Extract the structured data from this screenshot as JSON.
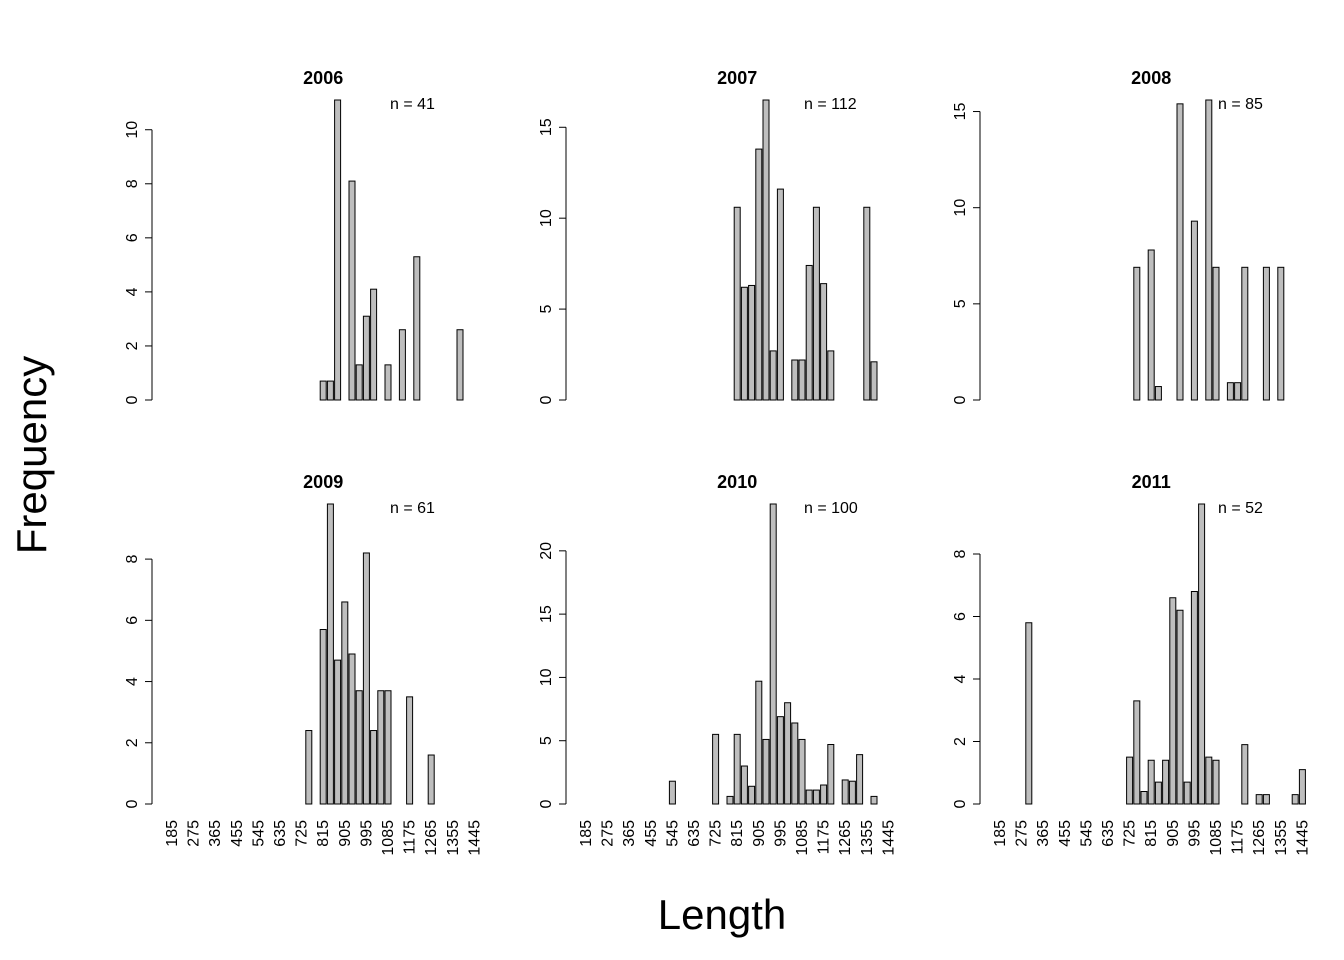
{
  "ylabel": "Frequency",
  "xlabel": "Length",
  "chart_data": [
    {
      "type": "bar",
      "title": "2006",
      "annotation": "n =  41",
      "color": "#bebebe",
      "values": [
        0,
        0,
        0,
        0,
        0,
        0,
        0,
        0,
        0,
        0,
        0,
        0,
        0,
        0,
        0,
        0,
        0,
        0,
        0,
        0,
        0,
        0.7,
        0.7,
        11.1,
        0,
        8.1,
        1.3,
        3.1,
        4.1,
        0,
        1.3,
        0,
        2.6,
        0,
        5.3,
        0,
        0,
        0,
        0,
        0,
        2.6,
        0,
        0
      ],
      "ylim": [
        0,
        11.1
      ],
      "yticks": [
        0,
        2,
        4,
        6,
        8,
        10
      ]
    },
    {
      "type": "bar",
      "title": "2007",
      "annotation": "n =  112",
      "color": "#bebebe",
      "values": [
        0,
        0,
        0,
        0,
        0,
        0,
        0,
        0,
        0,
        0,
        0,
        0,
        0,
        0,
        0,
        0,
        0,
        0,
        0,
        0,
        0,
        10.6,
        6.2,
        6.3,
        13.8,
        16.5,
        2.7,
        11.6,
        0,
        2.2,
        2.2,
        7.4,
        10.6,
        6.4,
        2.7,
        0,
        0,
        0,
        0,
        10.6,
        2.1,
        0,
        0
      ],
      "ylim": [
        0,
        16.5
      ],
      "yticks": [
        0,
        5,
        10,
        15
      ]
    },
    {
      "type": "bar",
      "title": "2008",
      "annotation": "n =  85",
      "color": "#bebebe",
      "values": [
        0,
        0,
        0,
        0,
        0,
        0,
        0,
        0,
        0,
        0,
        0,
        0,
        0,
        0,
        0,
        0,
        0,
        0,
        0,
        6.9,
        0,
        7.8,
        0.7,
        0,
        0,
        15.4,
        0,
        9.3,
        0,
        15.6,
        6.9,
        0,
        0.9,
        0.9,
        6.9,
        0,
        0,
        6.9,
        0,
        6.9,
        0,
        0,
        0
      ],
      "ylim": [
        0,
        15.6
      ],
      "yticks": [
        0,
        5,
        10,
        15
      ]
    },
    {
      "type": "bar",
      "title": "2009",
      "annotation": "n =  61",
      "color": "#bebebe",
      "categories": [
        185,
        null,
        null,
        275,
        null,
        null,
        365,
        null,
        null,
        455,
        null,
        null,
        545,
        null,
        null,
        635,
        null,
        null,
        725,
        null,
        null,
        815,
        null,
        null,
        905,
        null,
        null,
        995,
        null,
        null,
        1085,
        null,
        null,
        1175,
        null,
        null,
        1265,
        null,
        null,
        1355,
        null,
        null,
        1445
      ],
      "values": [
        0,
        0,
        0,
        0,
        0,
        0,
        0,
        0,
        0,
        0,
        0,
        0,
        0,
        0,
        0,
        0,
        0,
        0,
        0,
        2.4,
        0,
        5.7,
        9.8,
        4.7,
        6.6,
        4.9,
        3.7,
        8.2,
        2.4,
        3.7,
        3.7,
        0,
        0,
        3.5,
        0,
        0,
        1.6,
        0,
        0,
        0,
        0,
        0,
        0
      ],
      "ylim": [
        0,
        9.8
      ],
      "yticks": [
        0,
        2,
        4,
        6,
        8
      ]
    },
    {
      "type": "bar",
      "title": "2010",
      "annotation": "n =  100",
      "color": "#bebebe",
      "categories": [
        185,
        null,
        null,
        275,
        null,
        null,
        365,
        null,
        null,
        455,
        null,
        null,
        545,
        null,
        null,
        635,
        null,
        null,
        725,
        null,
        null,
        815,
        null,
        null,
        905,
        null,
        null,
        995,
        null,
        null,
        1085,
        null,
        null,
        1175,
        null,
        null,
        1265,
        null,
        null,
        1355,
        null,
        null,
        1445
      ],
      "values": [
        0,
        0,
        0,
        0,
        0,
        0,
        0,
        0,
        0,
        0,
        0,
        0,
        1.8,
        0,
        0,
        0,
        0,
        0,
        5.5,
        0,
        0.6,
        5.5,
        3.0,
        1.4,
        9.7,
        5.1,
        23.7,
        6.9,
        8.0,
        6.4,
        5.1,
        1.1,
        1.1,
        1.5,
        4.7,
        0,
        1.9,
        1.8,
        3.9,
        0,
        0.6,
        0,
        0
      ],
      "ylim": [
        0,
        23.7
      ],
      "yticks": [
        0,
        5,
        10,
        15,
        20
      ]
    },
    {
      "type": "bar",
      "title": "2011",
      "annotation": "n =  52",
      "color": "#bebebe",
      "categories": [
        185,
        null,
        null,
        275,
        null,
        null,
        365,
        null,
        null,
        455,
        null,
        null,
        545,
        null,
        null,
        635,
        null,
        null,
        725,
        null,
        null,
        815,
        null,
        null,
        905,
        null,
        null,
        995,
        null,
        null,
        1085,
        null,
        null,
        1175,
        null,
        null,
        1265,
        null,
        null,
        1355,
        null,
        null,
        1445
      ],
      "values": [
        0,
        0,
        0,
        0,
        5.8,
        0,
        0,
        0,
        0,
        0,
        0,
        0,
        0,
        0,
        0,
        0,
        0,
        0,
        1.5,
        3.3,
        0.4,
        1.4,
        0.7,
        1.4,
        6.6,
        6.2,
        0.7,
        6.8,
        9.6,
        1.5,
        1.4,
        0,
        0,
        0,
        1.9,
        0,
        0.3,
        0.3,
        0,
        0,
        0,
        0.3,
        1.1
      ],
      "ylim": [
        0,
        9.6
      ],
      "yticks": [
        0,
        2,
        4,
        6,
        8
      ]
    }
  ]
}
